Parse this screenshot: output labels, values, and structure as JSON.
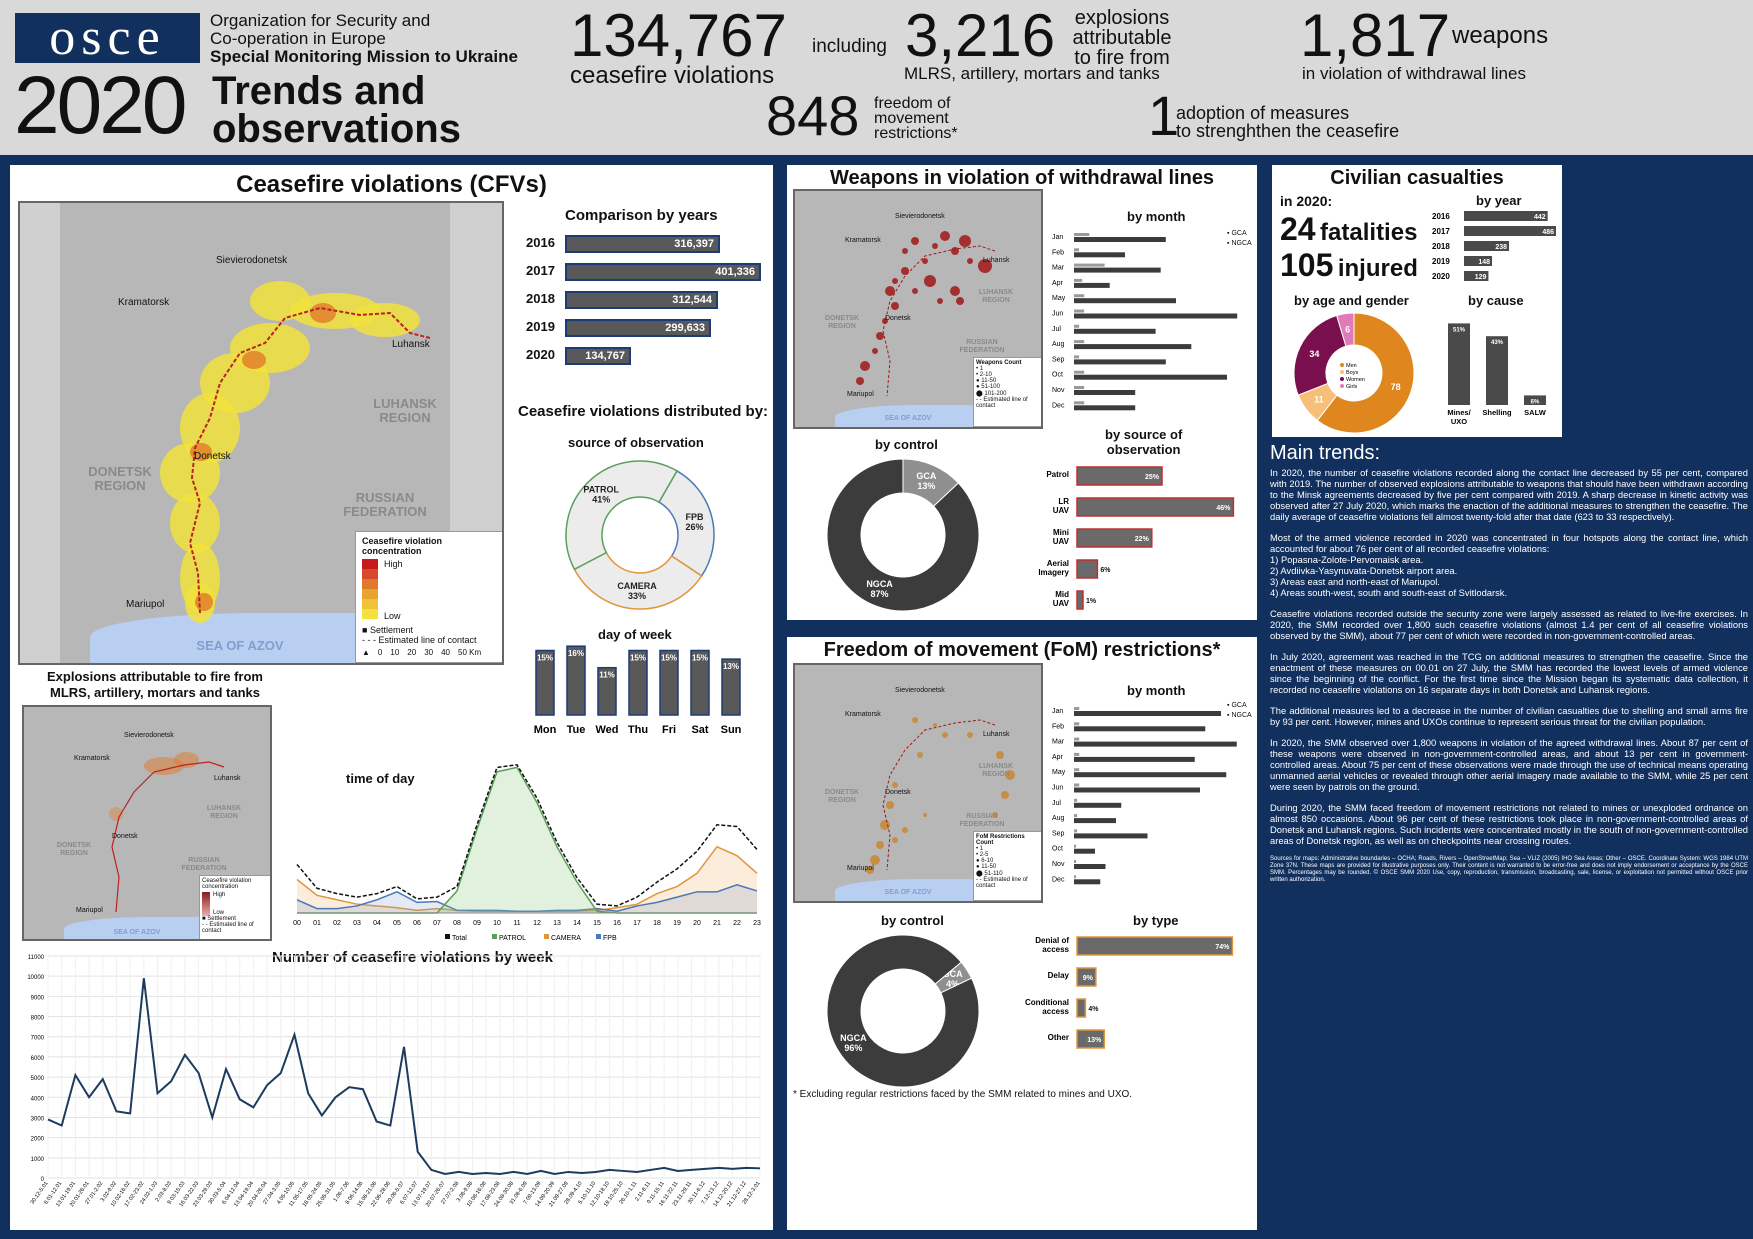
{
  "header": {
    "logo": "osce",
    "org_line1": "Organization for Security and",
    "org_line2": "Co-operation in Europe",
    "org_line3": "Special Monitoring Mission to Ukraine",
    "year": "2020",
    "title_line1": "Trends and",
    "title_line2": "observations",
    "stat1_num": "134,767",
    "stat1_text": "ceasefire violations",
    "including": "including",
    "stat2_num": "3,216",
    "stat2_text1": "explosions",
    "stat2_text2": "attributable",
    "stat2_text3": "to fire from",
    "stat2_text4": "MLRS, artillery, mortars and tanks",
    "stat3_num": "1,817",
    "stat3_text1": "weapons",
    "stat3_text2": "in violation of withdrawal lines",
    "stat4_num": "848",
    "stat4_text1": "freedom of",
    "stat4_text2": "movement",
    "stat4_text3": "restrictions*",
    "stat5_num": "1",
    "stat5_text1": "adoption of measures",
    "stat5_text2": "to strenghthen the ceasefire"
  },
  "cfv": {
    "title": "Ceasefire violations (CFVs)",
    "comparison_title": "Comparison by years",
    "distributed_title": "Ceasefire violations distributed by:",
    "source_title": "source of observation",
    "dow_title": "day of week",
    "tod_title": "time of day",
    "weekly_title": "Number of ceasefire violations by week",
    "explosions_title_1": "Explosions attributable to fire from",
    "explosions_title_2": "MLRS, artillery, mortars and tanks",
    "map": {
      "towns": [
        "Sievierodonetsk",
        "Kramatorsk",
        "Luhansk",
        "Donetsk",
        "Mariupol"
      ],
      "region_donetsk": "DONETSK REGION",
      "region_luhansk": "LUHANSK REGION",
      "russia": "RUSSIAN FEDERATION",
      "sea": "SEA OF AZOV",
      "legend_title": "Ceasefire violation concentration",
      "legend_high": "High",
      "legend_low": "Low",
      "legend_settlement": "Settlement",
      "legend_contact": "Estimated line of contact",
      "scale": [
        "0",
        "10",
        "20",
        "30",
        "40",
        "50 Km"
      ]
    },
    "small_map": {
      "towns": [
        "Sievierodonetsk",
        "Kramatorsk",
        "Luhansk",
        "Donetsk",
        "Mariupol"
      ],
      "region_donetsk": "DONETSK REGION",
      "region_luhansk": "LUHANSK REGION",
      "russia": "RUSSIAN FEDERATION",
      "sea": "SEA OF AZOV",
      "legend_title": "Ceasefire violation concentration",
      "legend_high": "High",
      "legend_low": "Low",
      "legend_settlement": "Settlement",
      "legend_contact": "Estimated line of contact"
    }
  },
  "weapons": {
    "title": "Weapons in violation of withdrawal lines",
    "by_month": "by month",
    "by_control": "by control",
    "by_source_1": "by source of",
    "by_source_2": "observation",
    "legend_gca": "GCA",
    "legend_ngca": "NGCA",
    "map_legend_title": "Weapons Count",
    "map_legend_items": [
      "1",
      "2-10",
      "11-50",
      "51-100",
      "101-200"
    ],
    "map_legend_contact": "Estimated line of contact",
    "map_sea": "SEA OF AZOV",
    "map_donetsk": "DONETSK REGION",
    "map_luhansk": "LUHANSK REGION",
    "map_russia": "RUSSIAN FEDERATION",
    "map_towns": [
      "Sievierodonetsk",
      "Kramatorsk",
      "Luhansk",
      "Donetsk",
      "Mariupol"
    ]
  },
  "fom": {
    "title": "Freedom of movement (FoM) restrictions*",
    "by_month": "by month",
    "by_control": "by control",
    "by_type": "by type",
    "legend_gca": "GCA",
    "legend_ngca": "NGCA",
    "footnote": "* Excluding regular restrictions faced by the SMM related to mines and UXO.",
    "map_legend_title": "FoM Restrictions Count",
    "map_legend_items": [
      "1",
      "2-5",
      "6-10",
      "11-50",
      "51-110"
    ],
    "map_legend_contact": "Estimated line of contact",
    "map_sea": "SEA OF AZOV",
    "map_donetsk": "DONETSK REGION",
    "map_luhansk": "LUHANSK REGION",
    "map_russia": "RUSSIAN FEDERATION",
    "map_towns": [
      "Sievierodonetsk",
      "Kramatorsk",
      "Luhansk",
      "Donetsk",
      "Mariupol"
    ]
  },
  "casualties": {
    "title": "Civilian casualties",
    "in2020": "in 2020:",
    "by_year": "by year",
    "fatalities_num": "24",
    "fatalities_text": "fatalities",
    "injured_num": "105",
    "injured_text": "injured",
    "by_age_gender": "by age and gender",
    "by_cause": "by cause"
  },
  "main_trends": {
    "title": "Main trends:",
    "p1": "In 2020, the number of ceasefire violations recorded along the contact line decreased by 55 per cent, compared with 2019. The number of observed explosions attributable to weapons that should have been withdrawn according to the Minsk agreements decreased by five per cent compared with 2019. A sharp decrease in kinetic activity was observed after 27 July 2020, which marks the enaction of the additional measures to strengthen the ceasefire. The daily average of ceasefire violations fell almost twenty-fold after that date (623 to 33 respectively).",
    "p2": "Most of the armed violence recorded in 2020 was concentrated in four hotspots along the contact line, which accounted for about 76 per cent of all recorded ceasefire violations:",
    "p2_l1": "1) Popasna-Zolote-Pervomaisk area.",
    "p2_l2": "2) Avdiivka-Yasynuvata-Donetsk airport area.",
    "p2_l3": "3) Areas east and north-east of Mariupol.",
    "p2_l4": "4) Areas south-west, south and south-east of Svitlodarsk.",
    "p3": "Ceasefire violations recorded outside the security zone were largely assessed as related to live-fire exercises. In 2020, the SMM recorded over 1,800 such ceasefire violations (almost 1.4 per cent of all ceasefire violations observed by the SMM), about 77 per cent of which were recorded in non-government-controlled areas.",
    "p4": "In July 2020, agreement was reached in the TCG on additional measures to strengthen the ceasefire. Since the enactment of these measures on 00.01 on 27 July, the SMM has recorded the lowest levels of armed violence since the beginning of the conflict. For the first time since the Mission began its systematic data collection, it recorded no ceasefire violations on 16 separate days in both Donetsk and Luhansk regions.",
    "p5": "The additional measures led to a decrease in the number of civilian casualties due to shelling and small arms fire by 93 per cent. However, mines and UXOs continue to represent serious threat for the civilian population.",
    "p6": "In 2020, the SMM observed over 1,800 weapons in violation of the agreed withdrawal lines. About 87 per cent of these weapons were observed in non-government-controlled areas, and about 13 per cent in government-controlled areas. About 75 per cent of these observations were made through the use of technical means operating unmanned aerial vehicles or revealed through other aerial imagery made available to the SMM, while 25 per cent were seen by patrols on the ground.",
    "p7": "During 2020, the SMM faced freedom of movement restrictions not related to mines or unexploded ordnance on almost 850 occasions. About 96 per cent of these restrictions took place in non-government-controlled areas of Donetsk and Luhansk regions. Such incidents were concentrated mostly in the south of non-government-controlled areas of Donetsk region, as well as on checkpoints near crossing routes.",
    "sources": "Sources for maps: Administrative boundaries – OCHA; Roads, Rivers – OpenStreetMap; Sea – VLIZ (2005) IHO Sea Areas; Other – OSCE. Coordinate System: WGS 1984 UTM Zone 37N. These maps are provided for illustrative purposes only. Their content is not warranted to be error-free and does not imply endorsement or acceptance by the OSCE SMM. Percentages may be rounded. © OSCE SMM 2020 Use, copy, reproduction, transmission, broadcasting, sale, license, or exploitation not permitted without OSCE prior written authorization."
  },
  "chart_data": [
    {
      "id": "cfv_years",
      "type": "bar",
      "title": "Comparison by years",
      "categories": [
        "2016",
        "2017",
        "2018",
        "2019",
        "2020"
      ],
      "values": [
        316397,
        401336,
        312544,
        299633,
        134767
      ],
      "labels": [
        "316,397",
        "401,336",
        "312,544",
        "299,633",
        "134,767"
      ],
      "orientation": "horizontal"
    },
    {
      "id": "cfv_source",
      "type": "pie",
      "title": "source of observation",
      "categories": [
        "PATROL",
        "FPB",
        "CAMERA"
      ],
      "values": [
        41,
        26,
        33
      ],
      "labels": [
        "41%",
        "26%",
        "33%"
      ]
    },
    {
      "id": "cfv_dow",
      "type": "bar",
      "title": "day of week",
      "categories": [
        "Mon",
        "Tue",
        "Wed",
        "Thu",
        "Fri",
        "Sat",
        "Sun"
      ],
      "values": [
        15,
        16,
        11,
        15,
        15,
        15,
        13
      ],
      "labels": [
        "15%",
        "16%",
        "11%",
        "15%",
        "15%",
        "15%",
        "13%"
      ]
    },
    {
      "id": "cfv_tod",
      "type": "area",
      "title": "time of day",
      "categories": [
        "00",
        "01",
        "02",
        "03",
        "04",
        "05",
        "06",
        "07",
        "08",
        "09",
        "10",
        "11",
        "12",
        "13",
        "14",
        "15",
        "16",
        "17",
        "18",
        "19",
        "20",
        "21",
        "22",
        "23"
      ],
      "series": [
        {
          "name": "Total",
          "values": [
            55,
            28,
            22,
            18,
            22,
            30,
            16,
            18,
            30,
            100,
            165,
            168,
            130,
            80,
            40,
            10,
            8,
            18,
            35,
            50,
            70,
            100,
            98,
            72
          ]
        },
        {
          "name": "PATROL",
          "values": [
            0,
            0,
            0,
            0,
            0,
            0,
            0,
            0,
            25,
            95,
            160,
            165,
            125,
            75,
            35,
            2,
            0,
            0,
            0,
            0,
            0,
            0,
            0,
            0
          ]
        },
        {
          "name": "CAMERA",
          "values": [
            38,
            20,
            15,
            10,
            8,
            6,
            3,
            5,
            3,
            2,
            2,
            2,
            2,
            2,
            2,
            3,
            6,
            10,
            22,
            30,
            45,
            75,
            65,
            45
          ]
        },
        {
          "name": "FPB",
          "values": [
            15,
            5,
            5,
            8,
            15,
            24,
            12,
            13,
            3,
            3,
            3,
            2,
            2,
            3,
            3,
            5,
            2,
            8,
            12,
            18,
            24,
            24,
            32,
            25
          ]
        }
      ],
      "legend": [
        "Total",
        "PATROL",
        "CAMERA",
        "FPB"
      ]
    },
    {
      "id": "cfv_weekly",
      "type": "line",
      "title": "Number of ceasefire violations by week",
      "yticks": [
        "0",
        "1000",
        "2000",
        "3000",
        "4000",
        "5000",
        "6000",
        "7000",
        "8000",
        "9000",
        "10000",
        "11000"
      ],
      "ylim": [
        0,
        11000
      ],
      "x": [
        "30.12-5.01",
        "6.01-12.01",
        "13.01-19.01",
        "20.01-26.01",
        "27.01-2.02",
        "3.02-9.02",
        "10.02-16.02",
        "17.02-23.02",
        "24.02-1.03",
        "2.03-8.03",
        "9.03-15.03",
        "16.03-22.03",
        "23.03-29.03",
        "30.03-5.04",
        "6.04-12.04",
        "13.04-19.04",
        "20.04-26.04",
        "27.04-3.05",
        "4.05-10.05",
        "11.05-17.05",
        "18.05-24.05",
        "25.05-31.05",
        "1.06-7.06",
        "8.06-14.06",
        "15.06-21.06",
        "22.06-28.06",
        "29.06-5.07",
        "6.07-12.07",
        "13.07-19.07",
        "20.07-26.07",
        "27.07-2.08",
        "3.08-9.08",
        "10.08-16.08",
        "17.08-23.08",
        "24.08-30.08",
        "31.08-6.09",
        "7.09-13.09",
        "14.09-20.09",
        "21.09-27.09",
        "28.09-4.10",
        "5.10-11.10",
        "12.10-18.10",
        "19.10-25.10",
        "26.10-1.11",
        "2.11-8.11",
        "9.11-15.11",
        "16.11-22.11",
        "23.11-29.11",
        "30.11-6.12",
        "7.12-13.12",
        "14.12-20.12",
        "21.12-27.12",
        "28.12-3.01"
      ],
      "xticks_shown": [
        "30.12-5.01",
        "6.01-12.01",
        "13.01-19.01",
        "20.01-26.01",
        "27.01-2.02",
        "3.02-9.02",
        "10.02-16.02",
        "17.02-23.02",
        "24.02-1.03",
        "2.03-8.03",
        "9.03-15.03",
        "16.03-22.03",
        "23.03-29.03",
        "30.03-5.04",
        "6.04-12.04",
        "13.04-19.04",
        "20.04-26.04",
        "27.04-3.05",
        "4.05-10.05",
        "11.05-17.05",
        "18.05-24.05",
        "25.05-31.05",
        "1.06-7.06",
        "8.06-14.06",
        "15.06-21.06",
        "22.06-28.06",
        "29.06-5.07",
        "6.07-12.07",
        "13.07-19.07",
        "20.07-26.07",
        "27.07-2.08",
        "3.08-9.08",
        "10.08-16.08",
        "17.08-23.08",
        "24.08-30.08",
        "31.08-6.09",
        "7.09-13.09",
        "14.09-20.09",
        "21.09-27.09",
        "28.09-4.10",
        "5.10-11.10",
        "12.10-18.10",
        "19.10-25.10",
        "26.10-1.11",
        "2.11-8.11",
        "9.11-15.11",
        "16.11-22.11",
        "23.11-29.11",
        "30.11-6.12",
        "7.12-13.12",
        "14.12-20.12",
        "21.12-27.12",
        "28.12-3.01"
      ],
      "values": [
        2900,
        2600,
        5100,
        4000,
        4900,
        3300,
        3200,
        9900,
        4200,
        4800,
        6100,
        5200,
        3000,
        5400,
        3900,
        3500,
        4600,
        5200,
        7100,
        4200,
        3100,
        4000,
        4500,
        4400,
        2800,
        2600,
        6500,
        1300,
        400,
        200,
        300,
        200,
        250,
        200,
        300,
        200,
        350,
        200,
        300,
        250,
        300,
        400,
        350,
        300,
        400,
        500,
        350,
        400,
        450,
        500,
        450,
        500,
        480
      ]
    },
    {
      "id": "weapons_month",
      "type": "bar",
      "title": "by month",
      "orientation": "horizontal",
      "categories": [
        "Jan",
        "Feb",
        "Mar",
        "Apr",
        "May",
        "Jun",
        "Jul",
        "Aug",
        "Sep",
        "Oct",
        "Nov",
        "Dec"
      ],
      "series": [
        {
          "name": "GCA",
          "values": [
            15,
            5,
            30,
            8,
            10,
            10,
            5,
            10,
            5,
            10,
            10,
            10
          ]
        },
        {
          "name": "NGCA",
          "values": [
            90,
            50,
            85,
            35,
            100,
            160,
            80,
            115,
            90,
            150,
            60,
            60
          ]
        }
      ],
      "legend": [
        "GCA",
        "NGCA"
      ]
    },
    {
      "id": "weapons_control",
      "type": "pie",
      "title": "by control",
      "categories": [
        "GCA",
        "NGCA"
      ],
      "values": [
        13,
        87
      ],
      "labels": [
        "13%",
        "87%"
      ]
    },
    {
      "id": "weapons_source",
      "type": "bar",
      "orientation": "horizontal",
      "title": "by source of observation",
      "categories": [
        "Patrol",
        "LR UAV",
        "Mini UAV",
        "Aerial Imagery",
        "Mid UAV"
      ],
      "values": [
        25,
        46,
        22,
        6,
        1
      ],
      "labels": [
        "25%",
        "46%",
        "22%",
        "6%",
        "1%"
      ]
    },
    {
      "id": "fom_month",
      "type": "bar",
      "title": "by month",
      "orientation": "horizontal",
      "categories": [
        "Jan",
        "Feb",
        "Mar",
        "Apr",
        "May",
        "Jun",
        "Jul",
        "Aug",
        "Sep",
        "Oct",
        "Nov",
        "Dec"
      ],
      "series": [
        {
          "name": "GCA",
          "values": [
            5,
            5,
            5,
            5,
            5,
            5,
            3,
            3,
            3,
            2,
            2,
            2
          ]
        },
        {
          "name": "NGCA",
          "values": [
            140,
            125,
            155,
            115,
            145,
            120,
            45,
            40,
            70,
            20,
            30,
            25
          ]
        }
      ],
      "legend": [
        "GCA",
        "NGCA"
      ]
    },
    {
      "id": "fom_control",
      "type": "pie",
      "title": "by control",
      "categories": [
        "GCA",
        "NGCA"
      ],
      "values": [
        4,
        96
      ],
      "labels": [
        "4%",
        "96%"
      ]
    },
    {
      "id": "fom_type",
      "type": "bar",
      "orientation": "horizontal",
      "title": "by type",
      "categories": [
        "Denial of access",
        "Delay",
        "Conditional access",
        "Other"
      ],
      "values": [
        74,
        9,
        4,
        13
      ],
      "labels": [
        "74%",
        "9%",
        "4%",
        "13%"
      ]
    },
    {
      "id": "casualties_year",
      "type": "bar",
      "orientation": "horizontal",
      "title": "by year",
      "categories": [
        "2016",
        "2017",
        "2018",
        "2019",
        "2020"
      ],
      "values": [
        442,
        486,
        238,
        148,
        129
      ]
    },
    {
      "id": "casualties_age_gender",
      "type": "pie",
      "title": "by age and gender",
      "categories": [
        "Men",
        "Boys",
        "Women",
        "Girls"
      ],
      "values": [
        78,
        11,
        34,
        6
      ]
    },
    {
      "id": "casualties_cause",
      "type": "bar",
      "title": "by cause",
      "categories": [
        "Mines/ UXO",
        "Shelling",
        "SALW"
      ],
      "values": [
        51,
        43,
        6
      ],
      "labels": [
        "51%",
        "43%",
        "6%"
      ]
    }
  ]
}
